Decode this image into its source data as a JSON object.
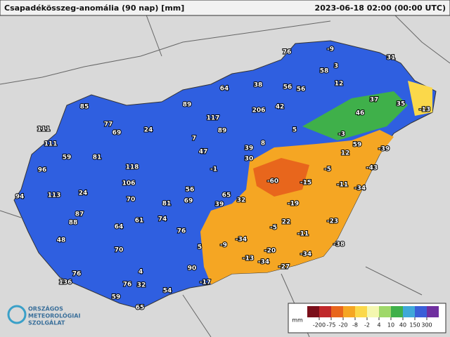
{
  "header": {
    "title": "Csapadékösszeg-anomália (90 nap) [mm]",
    "timestamp": "2023-06-18 02:00 (00:00 UTC)"
  },
  "stations": [
    76,
    -9,
    3,
    31,
    58,
    12,
    64,
    38,
    56,
    56,
    37,
    35,
    -13,
    85,
    89,
    206,
    42,
    46,
    111,
    77,
    69,
    24,
    117,
    89,
    5,
    -3,
    111,
    7,
    8,
    39,
    59,
    -39,
    59,
    81,
    47,
    30,
    12,
    96,
    118,
    -1,
    -5,
    -43,
    106,
    56,
    -60,
    -15,
    -11,
    -34,
    94,
    113,
    24,
    70,
    65,
    32,
    81,
    69,
    39,
    -19,
    87,
    88,
    61,
    74,
    64,
    22,
    -23,
    76,
    -5,
    -11,
    48,
    -34,
    -9,
    -38,
    5,
    70,
    -20,
    -34,
    -13,
    -34,
    4,
    90,
    -27,
    76,
    136,
    76,
    32,
    -17,
    54,
    59,
    65
  ],
  "legend": {
    "unit": "mm",
    "ticks": [
      -200,
      -75,
      -20,
      -8,
      -2,
      4,
      10,
      40,
      150,
      300
    ],
    "colors": [
      "#7a0f1a",
      "#c0282a",
      "#e8661c",
      "#f5a623",
      "#fbd84a",
      "#f4f7b0",
      "#9fd86a",
      "#3fb04a",
      "#3fa8d8",
      "#3a5fd8",
      "#7030a0"
    ]
  },
  "logo": {
    "lines": [
      "ORSZÁGOS",
      "METEOROLÓGIAI",
      "SZOLGÁLAT"
    ]
  }
}
